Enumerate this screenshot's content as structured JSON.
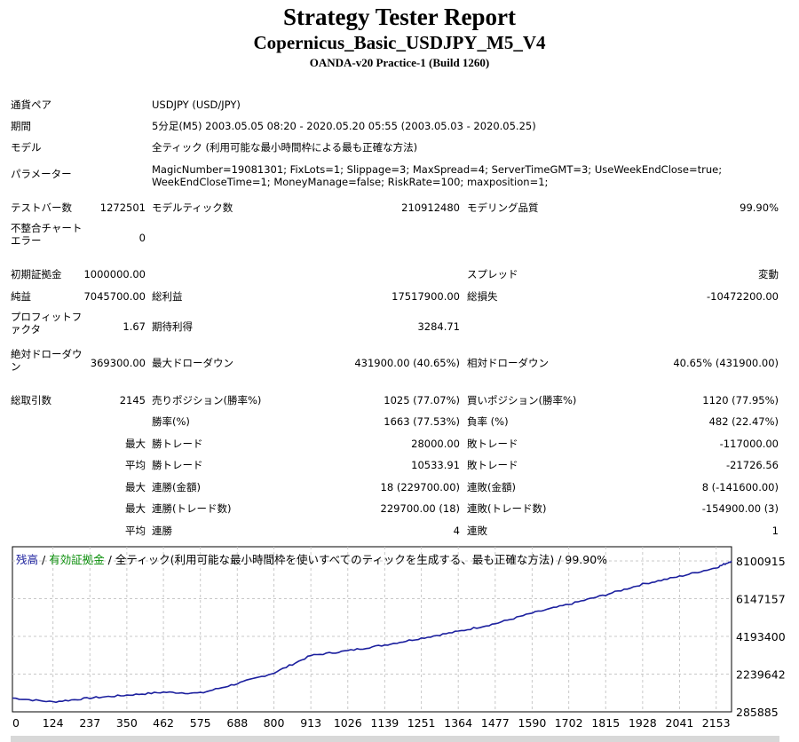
{
  "report": {
    "title": "Strategy Tester Report",
    "subtitle": "Copernicus_Basic_USDJPY_M5_V4",
    "build": "OANDA-v20 Practice-1 (Build 1260)"
  },
  "settings": {
    "pair_label": "通貨ペア",
    "pair_value": "USDJPY (USD/JPY)",
    "period_label": "期間",
    "period_value": "5分足(M5) 2003.05.05 08:20 - 2020.05.20 05:55 (2003.05.03 - 2020.05.25)",
    "model_label": "モデル",
    "model_value": "全ティック (利用可能な最小時間枠による最も正確な方法)",
    "params_label": "パラメーター",
    "params_value": "MagicNumber=19081301; FixLots=1; Slippage=3; MaxSpread=4; ServerTimeGMT=3; UseWeekEndClose=true; WeekEndCloseTime=1; MoneyManage=false; RiskRate=100; maxposition=1;"
  },
  "stats": {
    "bars_label": "テストバー数",
    "bars_value": "1272501",
    "ticks_label": "モデルティック数",
    "ticks_value": "210912480",
    "quality_label": "モデリング品質",
    "quality_value": "99.90%",
    "mismatch_label": "不整合チャート エラー",
    "mismatch_value": "0",
    "deposit_label": "初期証拠金",
    "deposit_value": "1000000.00",
    "spread_label": "スプレッド",
    "spread_value": "変動",
    "net_label": "純益",
    "net_value": "7045700.00",
    "gross_profit_label": "総利益",
    "gross_profit_value": "17517900.00",
    "gross_loss_label": "総損失",
    "gross_loss_value": "-10472200.00",
    "pf_label": "プロフィットファクタ",
    "pf_value": "1.67",
    "expected_label": "期待利得",
    "expected_value": "3284.71",
    "abs_dd_label": "絶対ドローダウン",
    "abs_dd_value": "369300.00",
    "max_dd_label": "最大ドローダウン",
    "max_dd_value": "431900.00 (40.65%)",
    "rel_dd_label": "相対ドローダウン",
    "rel_dd_value": "40.65% (431900.00)",
    "total_trades_label": "総取引数",
    "total_trades_value": "2145",
    "short_label": "売りポジション(勝率%)",
    "short_value": "1025 (77.07%)",
    "long_label": "買いポジション(勝率%)",
    "long_value": "1120 (77.95%)",
    "win_rate_label": "勝率(%)",
    "win_rate_value": "1663 (77.53%)",
    "loss_rate_label": "負率 (%)",
    "loss_rate_value": "482 (22.47%)",
    "max_label": "最大",
    "avg_label": "平均",
    "largest_win_label": "勝トレード",
    "largest_win_value": "28000.00",
    "largest_loss_label": "敗トレード",
    "largest_loss_value": "-117000.00",
    "avg_win_label": "勝トレード",
    "avg_win_value": "10533.91",
    "avg_loss_label": "敗トレード",
    "avg_loss_value": "-21726.56",
    "cons_wins_amt_label": "連勝(金額)",
    "cons_wins_amt_value": "18 (229700.00)",
    "cons_losses_amt_label": "連敗(金額)",
    "cons_losses_amt_value": "8 (-141600.00)",
    "cons_wins_trades_label": "連勝(トレード数)",
    "cons_wins_trades_value": "229700.00 (18)",
    "cons_losses_trades_label": "連敗(トレード数)",
    "cons_losses_trades_value": "-154900.00 (3)",
    "avg_cons_wins_label": "連勝",
    "avg_cons_wins_value": "4",
    "avg_cons_losses_label": "連敗",
    "avg_cons_losses_value": "1"
  },
  "legend": {
    "balance": "残高",
    "sep1": " / ",
    "equity": "有効証拠金",
    "rest": " / 全ティック(利用可能な最小時間枠を使いすべてのティックを生成する、最も正確な方法) / 99.90%"
  },
  "chart_data": {
    "type": "line",
    "x": [
      0,
      124,
      237,
      350,
      462,
      575,
      688,
      800,
      913,
      1026,
      1139,
      1251,
      1364,
      1477,
      1590,
      1702,
      1815,
      1928,
      2041,
      2153,
      2200
    ],
    "series": [
      {
        "values": [
          1000000,
          800000,
          1000000,
          1150000,
          1300000,
          1250000,
          1750000,
          2300000,
          3200000,
          3450000,
          3750000,
          4100000,
          4450000,
          4850000,
          5400000,
          5850000,
          6350000,
          6900000,
          7300000,
          7750000,
          8100000
        ]
      }
    ],
    "xticks": [
      "0",
      "124",
      "237",
      "350",
      "462",
      "575",
      "688",
      "800",
      "913",
      "1026",
      "1139",
      "1251",
      "1364",
      "1477",
      "1590",
      "1702",
      "1815",
      "1928",
      "2041",
      "2153"
    ],
    "yticks": [
      "8100915",
      "6147157",
      "4193400",
      "2239642",
      "285885"
    ],
    "ylim": [
      285885,
      8100915
    ],
    "xlim": [
      0,
      2200
    ],
    "grid": true,
    "colors": {
      "balance": "#1b1f9e",
      "equity": "#0a8f0a",
      "grid": "#c8c8c8"
    }
  }
}
